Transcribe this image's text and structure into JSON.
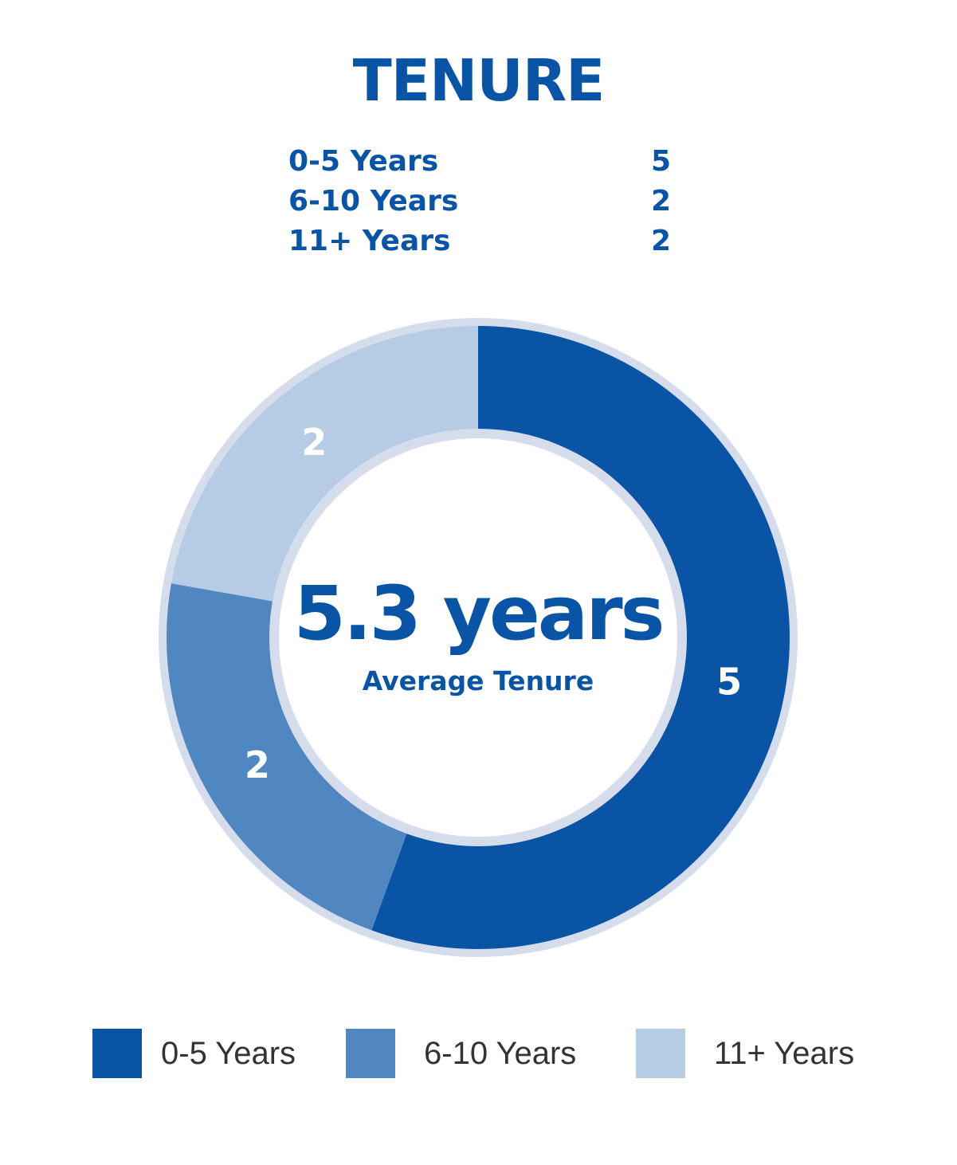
{
  "chart_data": {
    "type": "pie",
    "title": "TENURE",
    "categories": [
      "0-5 Years",
      "6-10 Years",
      "11+ Years"
    ],
    "values": [
      5,
      2,
      2
    ],
    "colors": [
      "#0a54a5",
      "#5087c1",
      "#b6cce5"
    ],
    "ring_color": "#d5dcec",
    "center_value": "5.3 years",
    "center_label": "Average Tenure",
    "legend_position": "bottom",
    "slice_labels": [
      "5",
      "2",
      "2"
    ]
  }
}
